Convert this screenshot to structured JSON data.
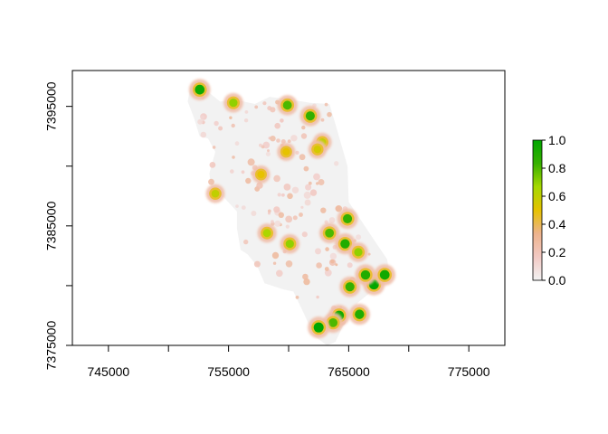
{
  "chart_data": {
    "type": "heatmap",
    "title": "",
    "xlabel": "",
    "ylabel": "",
    "xlim": [
      742000,
      778000
    ],
    "ylim": [
      7375000,
      7398000
    ],
    "x_ticks": [
      745000,
      755000,
      765000,
      775000
    ],
    "x_tick_labels": [
      "745000",
      "755000",
      "765000",
      "775000"
    ],
    "y_ticks": [
      7375000,
      7385000,
      7395000
    ],
    "y_tick_labels": [
      "7375000",
      "7385000",
      "7395000"
    ],
    "legend": {
      "placement": "right",
      "range": [
        0.0,
        1.0
      ],
      "ticks": [
        0.0,
        0.2,
        0.4,
        0.6,
        0.8,
        1.0
      ],
      "tick_labels": [
        "0.0",
        "0.2",
        "0.4",
        "0.6",
        "0.8",
        "1.0"
      ],
      "colors": [
        "#f2f2f2",
        "#f2c9c4",
        "#edb38d",
        "#e6c200",
        "#a6d800",
        "#37b000",
        "#00a600"
      ]
    },
    "region_outline": [
      [
        752000,
        7396700
      ],
      [
        753200,
        7396300
      ],
      [
        754300,
        7395400
      ],
      [
        755800,
        7395500
      ],
      [
        757200,
        7395200
      ],
      [
        758400,
        7395800
      ],
      [
        760000,
        7395600
      ],
      [
        761800,
        7395300
      ],
      [
        763400,
        7395200
      ],
      [
        763900,
        7393500
      ],
      [
        764900,
        7390000
      ],
      [
        765000,
        7387000
      ],
      [
        766000,
        7385500
      ],
      [
        767000,
        7384000
      ],
      [
        768200,
        7382200
      ],
      [
        768400,
        7381000
      ],
      [
        767000,
        7379600
      ],
      [
        765800,
        7378600
      ],
      [
        764600,
        7376800
      ],
      [
        763900,
        7375300
      ],
      [
        763200,
        7375000
      ],
      [
        762100,
        7375800
      ],
      [
        761300,
        7377600
      ],
      [
        760400,
        7379500
      ],
      [
        759500,
        7379700
      ],
      [
        758000,
        7380200
      ],
      [
        757400,
        7381600
      ],
      [
        756600,
        7382600
      ],
      [
        756000,
        7383000
      ],
      [
        755700,
        7384800
      ],
      [
        755700,
        7386200
      ],
      [
        754600,
        7387400
      ],
      [
        753600,
        7387800
      ],
      [
        753400,
        7389400
      ],
      [
        753900,
        7391200
      ],
      [
        753300,
        7392300
      ],
      [
        752600,
        7392500
      ],
      [
        752100,
        7394100
      ],
      [
        751600,
        7395400
      ],
      [
        751800,
        7396500
      ]
    ],
    "hotspots": [
      {
        "x": 752600,
        "y": 7396400,
        "value": 0.95
      },
      {
        "x": 755400,
        "y": 7395300,
        "value": 0.7
      },
      {
        "x": 759900,
        "y": 7395100,
        "value": 0.8
      },
      {
        "x": 761800,
        "y": 7394200,
        "value": 0.85
      },
      {
        "x": 762800,
        "y": 7392000,
        "value": 0.6
      },
      {
        "x": 762400,
        "y": 7391400,
        "value": 0.55
      },
      {
        "x": 759800,
        "y": 7391200,
        "value": 0.5
      },
      {
        "x": 757700,
        "y": 7389300,
        "value": 0.5
      },
      {
        "x": 753900,
        "y": 7387700,
        "value": 0.6
      },
      {
        "x": 764900,
        "y": 7385600,
        "value": 0.85
      },
      {
        "x": 763400,
        "y": 7384400,
        "value": 0.8
      },
      {
        "x": 760100,
        "y": 7383500,
        "value": 0.7
      },
      {
        "x": 758200,
        "y": 7384400,
        "value": 0.65
      },
      {
        "x": 764700,
        "y": 7383500,
        "value": 0.9
      },
      {
        "x": 765800,
        "y": 7382800,
        "value": 0.7
      },
      {
        "x": 767100,
        "y": 7380100,
        "value": 1.0
      },
      {
        "x": 768000,
        "y": 7380900,
        "value": 0.95
      },
      {
        "x": 766400,
        "y": 7380900,
        "value": 0.9
      },
      {
        "x": 765100,
        "y": 7379900,
        "value": 0.85
      },
      {
        "x": 764200,
        "y": 7377500,
        "value": 0.95
      },
      {
        "x": 763700,
        "y": 7376900,
        "value": 0.8
      },
      {
        "x": 762500,
        "y": 7376500,
        "value": 1.0
      },
      {
        "x": 765900,
        "y": 7377600,
        "value": 0.9
      }
    ]
  }
}
